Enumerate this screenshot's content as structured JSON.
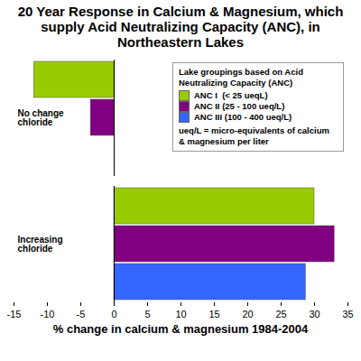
{
  "chart_data": {
    "type": "bar",
    "orientation": "horizontal",
    "title": "20 Year Response in Calcium & Magnesium, which supply Acid Neutralizing Capacity (ANC), in Northeastern Lakes",
    "xlabel": "% change in calcium & magnesium 1984-2004",
    "categories": [
      "No change chloride",
      "Increasing chloride"
    ],
    "series": [
      {
        "name": "ANC I  (< 25 ueqL)",
        "color": "#99cc00",
        "values": [
          -12,
          30
        ]
      },
      {
        "name": "ANC II (25 - 100 ueq/L)",
        "color": "#800080",
        "values": [
          -3.5,
          33
        ]
      },
      {
        "name": "ANC III (100 - 400 ueq/L)",
        "color": "#3366ff",
        "values": [
          null,
          28.7
        ]
      }
    ],
    "xlim": [
      -15,
      35
    ],
    "xticks": [
      -15,
      -10,
      -5,
      0,
      5,
      10,
      15,
      20,
      25,
      30,
      35
    ],
    "grid": false,
    "legend": "upper right",
    "legend_title": "Lake groupings based on Acid Neutralizing Capacity (ANC)",
    "legend_note": "ueq/L = micro-equivalents of calcium & magnesium per liter"
  }
}
